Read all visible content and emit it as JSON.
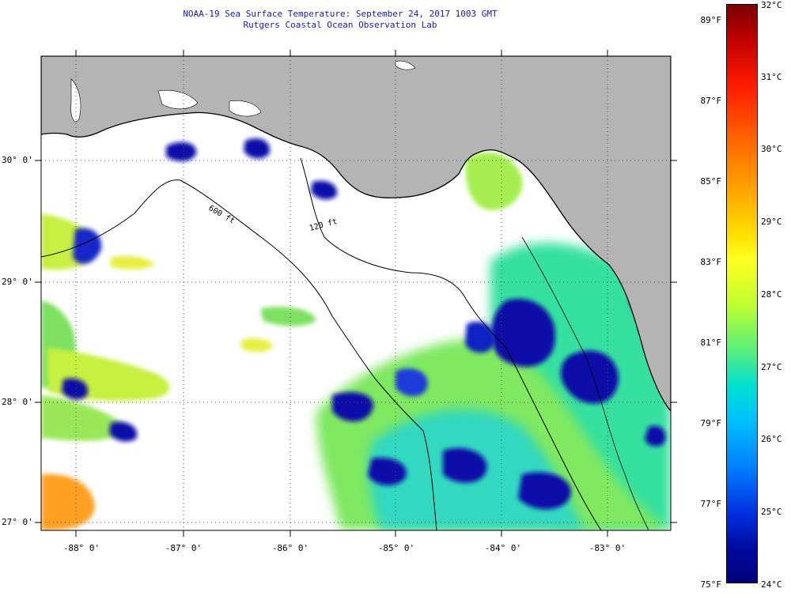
{
  "title": {
    "line1": "NOAA-19 Sea Surface Temperature:  September 24, 2017 1003 GMT",
    "line2": "Rutgers Coastal Ocean Observation Lab"
  },
  "map": {
    "lat_labels": [
      "30° 0'",
      "29° 0'",
      "28° 0'",
      "27° 0'"
    ],
    "lon_labels": [
      "-88° 0'",
      "-87° 0'",
      "-86° 0'",
      "-85° 0'",
      "-84° 0'",
      "-83° 0'"
    ],
    "contours": [
      "600 ft",
      "120 ft"
    ],
    "colors": {
      "land": "#b4b4b4",
      "ocean_no_data": "#ffffff",
      "graticule": "#666666"
    }
  },
  "colorbar": {
    "fahrenheit": [
      "89°F",
      "87°F",
      "85°F",
      "83°F",
      "81°F",
      "79°F",
      "77°F",
      "75°F"
    ],
    "celsius": [
      "32°C",
      "31°C",
      "30°C",
      "29°C",
      "28°C",
      "27°C",
      "26°C",
      "25°C",
      "24°C"
    ],
    "min_c": 24,
    "max_c": 32
  }
}
